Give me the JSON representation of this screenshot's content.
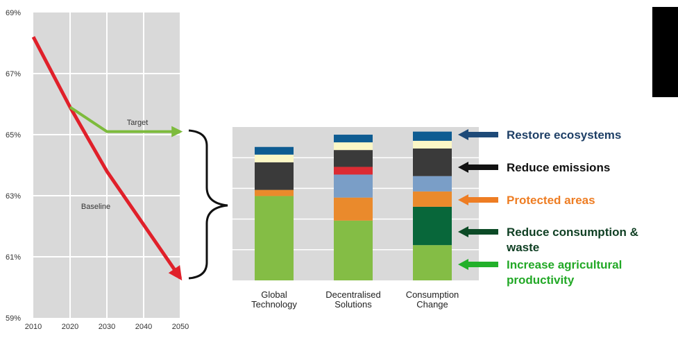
{
  "chart_data": [
    {
      "type": "line",
      "x": [
        2010,
        2020,
        2030,
        2040,
        2050
      ],
      "ylim": [
        59,
        69
      ],
      "y_ticks": [
        "59%",
        "61%",
        "63%",
        "65%",
        "67%",
        "69%"
      ],
      "x_ticks": [
        "2010",
        "2020",
        "2030",
        "2040",
        "2050"
      ],
      "grid": true,
      "series": [
        {
          "name": "Baseline",
          "x": [
            2010,
            2020,
            2030,
            2050
          ],
          "y": [
            68.2,
            65.9,
            63.8,
            60.3
          ],
          "color": "#e0202a"
        },
        {
          "name": "Target",
          "x": [
            2020,
            2030,
            2050
          ],
          "y": [
            65.9,
            65.1,
            65.1
          ],
          "color": "#7dbb3c"
        }
      ]
    },
    {
      "type": "bar",
      "stacked": true,
      "categories": [
        "Global\nTechnology",
        "Decentralised\nSolutions",
        "Consumption\nChange"
      ],
      "ylim": [
        0,
        100
      ],
      "grid": true,
      "series": [
        {
          "name": "Increase agricultural productivity",
          "color": "#84bd45",
          "values": [
            55,
            39,
            23
          ]
        },
        {
          "name": "Reduce consumption & waste",
          "color": "#08673a",
          "values": [
            0,
            0,
            25
          ]
        },
        {
          "name": "Protected areas",
          "color": "#ea8a2c",
          "values": [
            4,
            15,
            10
          ]
        },
        {
          "name": "",
          "color": "#7a9ec7",
          "values": [
            0,
            15,
            10
          ]
        },
        {
          "name": "",
          "color": "#dc2b33",
          "values": [
            0,
            5,
            0
          ]
        },
        {
          "name": "Reduce emissions",
          "color": "#3a3a3a",
          "values": [
            18,
            11,
            18
          ]
        },
        {
          "name": "",
          "color": "#fbf7c6",
          "values": [
            5,
            5,
            5
          ]
        },
        {
          "name": "Restore ecosystems",
          "color": "#0e5c92",
          "values": [
            5,
            5,
            6
          ]
        }
      ]
    }
  ],
  "callouts": [
    {
      "text": "Restore ecosystems",
      "color": "#1e3f66",
      "arrow_color": "#1e4a78"
    },
    {
      "text": "Reduce emissions",
      "color": "#111111",
      "arrow_color": "#111111"
    },
    {
      "text": "Protected areas",
      "color": "#ee7d23",
      "arrow_color": "#ee7d23"
    },
    {
      "text": "Reduce consumption &\nwaste",
      "color": "#0f3f23",
      "arrow_color": "#0c4a26"
    },
    {
      "text": "Increase agricultural\nproductivity",
      "color": "#22a826",
      "arrow_color": "#22b02a"
    }
  ],
  "colors": {
    "plot_bg": "#d9d9d9",
    "bar_area_bg": "#d9d9d9",
    "grid": "#ffffff"
  }
}
